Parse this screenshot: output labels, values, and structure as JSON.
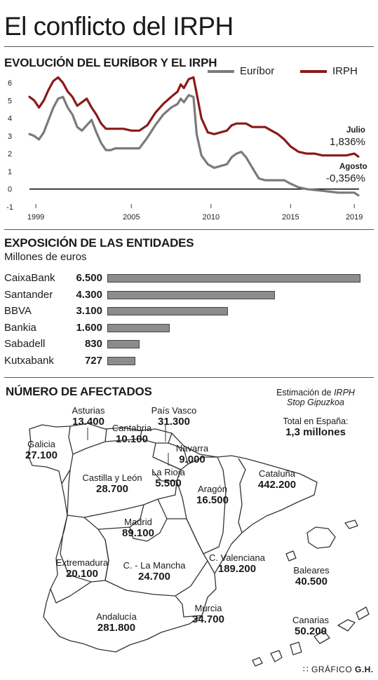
{
  "title": "El conflicto del IRPH",
  "chart_data": [
    {
      "type": "line",
      "title": "EVOLUCIÓN DEL EURÍBOR Y EL IRPH",
      "x_ticks": [
        "1999",
        "2005",
        "2010",
        "2015",
        "2019"
      ],
      "y_ticks": [
        "6",
        "5",
        "4",
        "3",
        "2",
        "1",
        "0",
        "-1"
      ],
      "xlim": [
        1998.6,
        2019.3
      ],
      "ylim": [
        -1,
        6
      ],
      "series": [
        {
          "name": "IRPH",
          "color": "#8b1a1a",
          "x": [
            1998.6,
            1998.9,
            1999.2,
            1999.5,
            1999.8,
            2000.1,
            2000.4,
            2000.7,
            2001.0,
            2001.3,
            2001.6,
            2001.9,
            2002.2,
            2002.5,
            2002.8,
            2003.1,
            2003.4,
            2003.7,
            2004.0,
            2004.5,
            2005.0,
            2005.5,
            2006.0,
            2006.5,
            2007.0,
            2007.5,
            2007.9,
            2008.1,
            2008.3,
            2008.6,
            2008.9,
            2009.1,
            2009.4,
            2009.8,
            2010.2,
            2010.6,
            2011.0,
            2011.3,
            2011.6,
            2011.9,
            2012.2,
            2012.6,
            2013.0,
            2013.4,
            2013.8,
            2014.2,
            2014.6,
            2015.0,
            2015.5,
            2016.0,
            2016.5,
            2017.0,
            2017.5,
            2018.0,
            2018.5,
            2019.0,
            2019.25
          ],
          "y": [
            5.2,
            5.0,
            4.6,
            5.0,
            5.6,
            6.1,
            6.3,
            6.0,
            5.5,
            5.2,
            4.7,
            4.9,
            5.1,
            4.6,
            4.2,
            3.7,
            3.4,
            3.4,
            3.4,
            3.4,
            3.3,
            3.3,
            3.6,
            4.3,
            4.8,
            5.2,
            5.5,
            5.9,
            5.7,
            6.2,
            6.3,
            5.4,
            4.0,
            3.2,
            3.1,
            3.2,
            3.3,
            3.6,
            3.7,
            3.7,
            3.7,
            3.5,
            3.5,
            3.5,
            3.3,
            3.1,
            2.8,
            2.4,
            2.1,
            2.0,
            2.0,
            1.9,
            1.9,
            1.9,
            1.9,
            2.0,
            1.836
          ]
        },
        {
          "name": "Euríbor",
          "color": "#7a7a7a",
          "x": [
            1998.6,
            1998.9,
            1999.2,
            1999.5,
            1999.8,
            2000.1,
            2000.4,
            2000.7,
            2001.0,
            2001.3,
            2001.6,
            2001.9,
            2002.2,
            2002.5,
            2002.8,
            2003.1,
            2003.4,
            2003.7,
            2004.0,
            2004.5,
            2005.0,
            2005.5,
            2006.0,
            2006.5,
            2007.0,
            2007.5,
            2007.9,
            2008.1,
            2008.3,
            2008.6,
            2008.9,
            2009.1,
            2009.4,
            2009.8,
            2010.2,
            2010.6,
            2011.0,
            2011.3,
            2011.6,
            2011.9,
            2012.2,
            2012.6,
            2013.0,
            2013.4,
            2013.8,
            2014.2,
            2014.6,
            2015.0,
            2015.5,
            2016.0,
            2016.5,
            2017.0,
            2017.5,
            2018.0,
            2018.5,
            2019.0,
            2019.25
          ],
          "y": [
            3.1,
            3.0,
            2.8,
            3.2,
            3.9,
            4.6,
            5.1,
            5.2,
            4.6,
            4.2,
            3.5,
            3.3,
            3.6,
            3.9,
            3.2,
            2.6,
            2.2,
            2.2,
            2.3,
            2.3,
            2.3,
            2.3,
            2.9,
            3.6,
            4.2,
            4.6,
            4.8,
            5.1,
            4.9,
            5.3,
            5.2,
            3.1,
            1.9,
            1.4,
            1.2,
            1.3,
            1.4,
            1.8,
            2.0,
            2.1,
            1.8,
            1.2,
            0.6,
            0.5,
            0.5,
            0.5,
            0.5,
            0.3,
            0.1,
            0.0,
            -0.05,
            -0.1,
            -0.15,
            -0.2,
            -0.2,
            -0.2,
            -0.356
          ]
        }
      ],
      "annotations": [
        {
          "label": "Julio",
          "value": "1,836%"
        },
        {
          "label": "Agosto",
          "value": "-0,356%"
        }
      ]
    },
    {
      "type": "bar",
      "title": "EXPOSICIÓN DE LAS ENTIDADES",
      "subtitle": "Millones de euros",
      "categories": [
        "CaixaBank",
        "Santander",
        "BBVA",
        "Bankia",
        "Sabadell",
        "Kutxabank"
      ],
      "values": [
        6500,
        4300,
        3100,
        1600,
        830,
        727
      ],
      "value_labels": [
        "6.500",
        "4.300",
        "3.100",
        "1.600",
        "830",
        "727"
      ],
      "xlim": [
        0,
        6500
      ]
    }
  ],
  "map": {
    "title": "NÚMERO DE AFECTADOS",
    "note_line1": "Estimación de",
    "note_italic": "IRPH",
    "note_line2": "Stop Gipuzkoa",
    "total_label": "Total en España:",
    "total_value": "1,3 millones",
    "regions": [
      {
        "name": "Asturias",
        "value": "13.400"
      },
      {
        "name": "Cantabria",
        "value": "10.100"
      },
      {
        "name": "País Vasco",
        "value": "31.300"
      },
      {
        "name": "Galicia",
        "value": "27.100"
      },
      {
        "name": "Navarra",
        "value": "9.000"
      },
      {
        "name": "Castilla y León",
        "value": "28.700"
      },
      {
        "name": "La Rioja",
        "value": "5.500"
      },
      {
        "name": "Cataluña",
        "value": "442.200"
      },
      {
        "name": "Aragón",
        "value": "16.500"
      },
      {
        "name": "Madrid",
        "value": "89.100"
      },
      {
        "name": "Extremadura",
        "value": "20.100"
      },
      {
        "name": "C. - La Mancha",
        "value": "24.700"
      },
      {
        "name": "C. Valenciana",
        "value": "189.200"
      },
      {
        "name": "Baleares",
        "value": "40.500"
      },
      {
        "name": "Andalucía",
        "value": "281.800"
      },
      {
        "name": "Murcia",
        "value": "34.700"
      },
      {
        "name": "Canarias",
        "value": "50.200"
      }
    ]
  },
  "credit": {
    "prefix": "GRÁFICO",
    "suffix": "G.H."
  }
}
